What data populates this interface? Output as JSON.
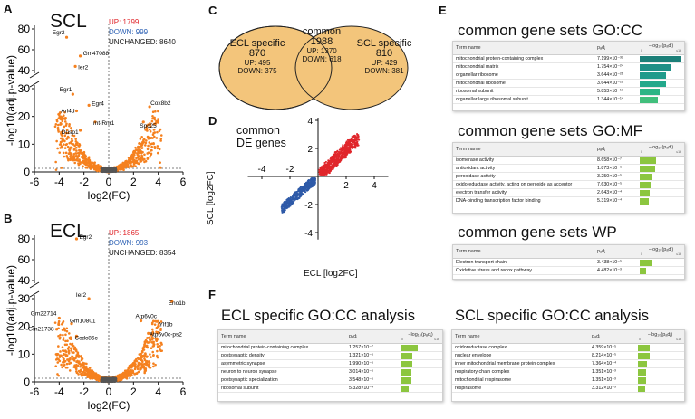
{
  "panels": {
    "A": {
      "letter": "A",
      "title": "SCL",
      "up_label": "UP: 1799",
      "down_label": "DOWN: 999",
      "unchanged_label": "UNCHANGED: 8640",
      "ylabel": "-log10(adj.p-value)",
      "xlabel": "log2(FC)",
      "x_ticks": [
        "-6",
        "-4",
        "-2",
        "0",
        "2",
        "4",
        "6"
      ],
      "y_ticks_top": [
        "80",
        "60",
        "40"
      ],
      "y_ticks_bottom": [
        "30",
        "20",
        "10",
        "0"
      ],
      "genes": [
        "Egr2",
        "Gm47088",
        "Ier2",
        "Egr1",
        "Egr4",
        "Arl4d",
        "mt-Rnr1",
        "Dusp1",
        "Cox8b2",
        "Spc25"
      ]
    },
    "B": {
      "letter": "B",
      "title": "ECL",
      "up_label": "UP: 1865",
      "down_label": "DOWN: 993",
      "unchanged_label": "UNCHANGED: 8354",
      "ylabel": "-log10(adj.p-value)",
      "xlabel": "log2(FC)",
      "x_ticks": [
        "-6",
        "-4",
        "-2",
        "0",
        "2",
        "4",
        "6"
      ],
      "y_ticks_top": [
        "80",
        "60",
        "40"
      ],
      "y_ticks_bottom": [
        "30",
        "20",
        "10",
        "0"
      ],
      "genes": [
        "Egr2",
        "Ier2",
        "Eno1b",
        "Gm22714",
        "Gm10801",
        "Gm21738",
        "Ccdc85c",
        "Atp6v0c",
        "Ylf1b",
        "Atp6v0c-ps2"
      ]
    },
    "C": {
      "letter": "C",
      "left_title": "ECL specific",
      "left_count": "870",
      "left_up": "UP: 495",
      "left_down": "DOWN: 375",
      "mid_title": "common",
      "mid_count": "1988",
      "mid_up": "UP: 1370",
      "mid_down": "DOWN: 618",
      "right_title": "SCL specific",
      "right_count": "810",
      "right_up": "UP: 429",
      "right_down": "DOWN: 381"
    },
    "D": {
      "letter": "D",
      "title_line1": "common",
      "title_line2": "DE genes",
      "xlabel": "ECL [log2FC]",
      "ylabel": "SCL [log2FC]",
      "x_ticks": [
        "-4",
        "-2",
        "2",
        "4"
      ],
      "y_ticks": [
        "4",
        "2",
        "-2",
        "-4"
      ]
    },
    "E": {
      "letter": "E",
      "cc": {
        "title": "common gene sets GO:CC",
        "col_term": "Term name",
        "col_p": "pₐdⱼ",
        "col_bar": "−log₁₀(pₐdⱼ)",
        "rows": [
          {
            "term": "mitochondrial protein-containing complex",
            "p": "7.199×10⁻³³"
          },
          {
            "term": "mitochondrial matrix",
            "p": "1.754×10⁻²⁴"
          },
          {
            "term": "organellar ribosome",
            "p": "3.644×10⁻²¹"
          },
          {
            "term": "mitochondrial ribosome",
            "p": "3.644×10⁻²¹"
          },
          {
            "term": "ribosomal subunit",
            "p": "5.853×10⁻¹⁶"
          },
          {
            "term": "organellar large ribosomal subunit",
            "p": "1.344×10⁻¹⁴"
          }
        ]
      },
      "mf": {
        "title": "common gene sets GO:MF",
        "col_term": "Term name",
        "col_p": "pₐdⱼ",
        "col_bar": "−log₁₀(pₐdⱼ)",
        "rows": [
          {
            "term": "isomerase activity",
            "p": "8.658×10⁻⁷"
          },
          {
            "term": "antioxidant activity",
            "p": "1.873×10⁻⁶"
          },
          {
            "term": "peroxidase activity",
            "p": "3.250×10⁻⁵"
          },
          {
            "term": "oxidoreductase activity, acting on peroxide as acceptor",
            "p": "7.630×10⁻⁵"
          },
          {
            "term": "electron transfer activity",
            "p": "2.643×10⁻⁴"
          },
          {
            "term": "DNA-binding transcription factor binding",
            "p": "5.319×10⁻⁴"
          }
        ]
      },
      "wp": {
        "title": "common gene sets WP",
        "col_term": "Term name",
        "col_p": "pₐdⱼ",
        "col_bar": "−log₁₀(pₐdⱼ)",
        "rows": [
          {
            "term": "Electron transport chain",
            "p": "3.438×10⁻⁵"
          },
          {
            "term": "Oxidative stress and redox pathway",
            "p": "4.482×10⁻³"
          }
        ]
      }
    },
    "F": {
      "letter": "F",
      "ecl": {
        "title": "ECL specific GO:CC analysis",
        "col_term": "Term name",
        "col_p": "pₐdⱼ",
        "col_bar": "−log₁₀(pₐdⱼ)",
        "rows": [
          {
            "term": "mitochondrial protein-containing complex",
            "p": "1.257×10⁻⁷"
          },
          {
            "term": "postsynaptic density",
            "p": "1.321×10⁻⁵"
          },
          {
            "term": "asymmetric synapse",
            "p": "1.990×10⁻⁵"
          },
          {
            "term": "neuron to neuron synapse",
            "p": "3.014×10⁻⁵"
          },
          {
            "term": "postsynaptic specialization",
            "p": "3.548×10⁻⁵"
          },
          {
            "term": "ribosomal subunit",
            "p": "5.328×10⁻⁴"
          }
        ]
      },
      "scl": {
        "title": "SCL specific GO:CC analysis",
        "col_term": "Term name",
        "col_p": "pₐdⱼ",
        "col_bar": "−log₁₀(pₐdⱼ)",
        "rows": [
          {
            "term": "oxidoreductase complex",
            "p": "4.359×10⁻⁵"
          },
          {
            "term": "nuclear envelope",
            "p": "8.214×10⁻⁵"
          },
          {
            "term": "inner mitochondrial membrane protein complex",
            "p": "7.364×10⁻⁴"
          },
          {
            "term": "respiratory chain complex",
            "p": "1.351×10⁻³"
          },
          {
            "term": "mitochondrial respirasome",
            "p": "1.351×10⁻³"
          },
          {
            "term": "respirasome",
            "p": "3.312×10⁻³"
          }
        ]
      }
    }
  },
  "colors": {
    "up": "#e0262b",
    "down": "#2e62b5",
    "point": "#f5811f",
    "venn": "#f3c57b",
    "cc_bar": "#1e8f86",
    "go_bar": "#8cc63f",
    "scatter_up": "#e0262b",
    "scatter_down": "#2e5aa8"
  }
}
